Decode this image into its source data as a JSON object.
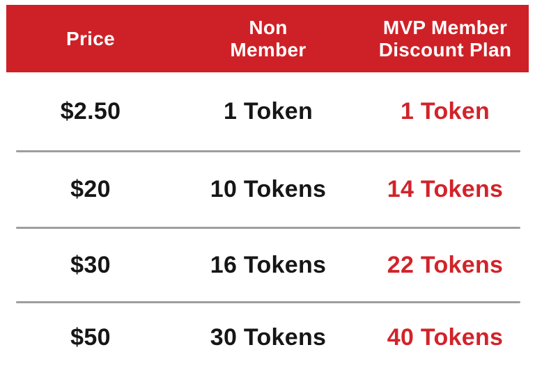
{
  "colors": {
    "banner_red": "#CE2127",
    "highlight_text_red": "#D2232A",
    "body_text_black": "#161616",
    "divider_gray": "#9e9e9e",
    "header_text_white": "#ffffff",
    "page_background": "#ffffff"
  },
  "table": {
    "headers": [
      "Price",
      "Non\nMember",
      "MVP Member\nDiscount Plan"
    ]
  },
  "chart_data": {
    "type": "table",
    "columns": [
      "Price",
      "Non Member",
      "MVP Member Discount Plan"
    ],
    "rows": [
      [
        "$2.50",
        "1 Token",
        "1 Token"
      ],
      [
        "$20",
        "10 Tokens",
        "14 Tokens"
      ],
      [
        "$30",
        "16 Tokens",
        "22 Tokens"
      ],
      [
        "$50",
        "30 Tokens",
        "40 Tokens"
      ]
    ],
    "notes": "Token pricing table; MVP Member Discount Plan column values rendered in red"
  }
}
